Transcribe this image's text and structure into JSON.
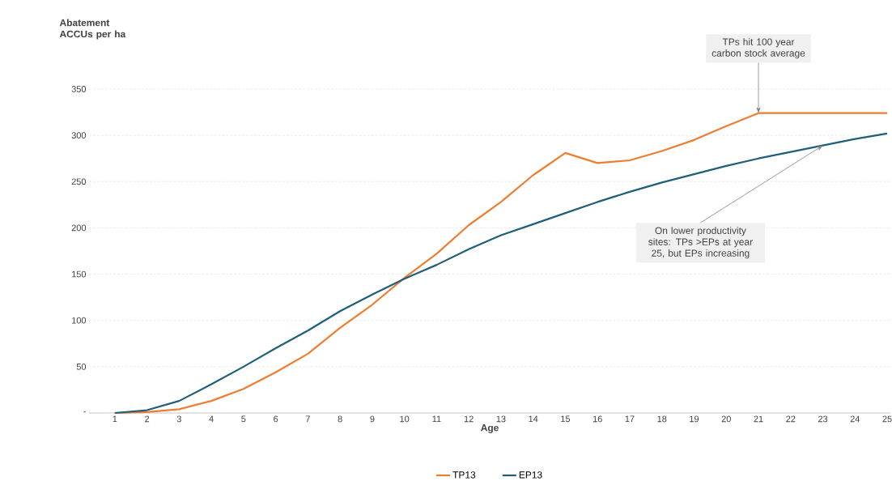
{
  "chart_data": {
    "type": "line",
    "xlabel": "Age",
    "ylabel": "Abatement ACCUs  per ha",
    "categories": [
      "1",
      "2",
      "3",
      "4",
      "5",
      "6",
      "7",
      "8",
      "9",
      "10",
      "11",
      "12",
      "13",
      "14",
      "15",
      "16",
      "17",
      "18",
      "19",
      "20",
      "21",
      "22",
      "23",
      "24",
      "25"
    ],
    "series": [
      {
        "name": "TP13",
        "color": "#ed7d31",
        "values": [
          0,
          1,
          4,
          13,
          26,
          44,
          64,
          92,
          117,
          146,
          172,
          203,
          228,
          257,
          281,
          270,
          273,
          283,
          295,
          310,
          324,
          324,
          324,
          324,
          324
        ]
      },
      {
        "name": "EP13",
        "color": "#1f5f7a",
        "values": [
          0,
          3,
          13,
          31,
          50,
          70,
          89,
          110,
          128,
          145,
          160,
          177,
          192,
          204,
          216,
          228,
          239,
          249,
          258,
          267,
          275,
          282,
          289,
          296,
          302
        ]
      }
    ],
    "ylim": [
      0,
      350
    ],
    "yticks": [
      {
        "value": 0,
        "label": "-"
      },
      50,
      100,
      150,
      200,
      250,
      300,
      350
    ],
    "grid": "y",
    "line_style": "solid",
    "marker": "none",
    "legend": "bottom",
    "annotations": [
      {
        "text": "TPs hit 100 year carbon stock average",
        "x": "21",
        "y": 324
      },
      {
        "text": "On lower productivity sites: TPs >EPs at year 25, but EPs increasing",
        "x": "23",
        "y": 289
      }
    ]
  }
}
